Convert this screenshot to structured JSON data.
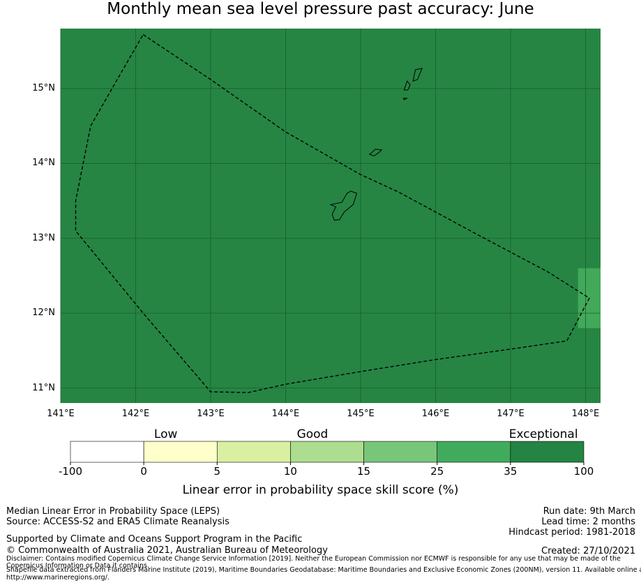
{
  "title": "Monthly mean sea level pressure past accuracy: June",
  "map": {
    "x_ticks": [
      "141°E",
      "142°E",
      "143°E",
      "144°E",
      "145°E",
      "146°E",
      "147°E",
      "148°E"
    ],
    "y_ticks": [
      "15°N",
      "14°N",
      "13°N",
      "12°N",
      "11°N"
    ],
    "x_range_deg": [
      141.0,
      148.2
    ],
    "y_range_deg": [
      10.8,
      15.8
    ],
    "background_category": "Exceptional",
    "background_color": "#268543",
    "highlight_cells": [
      {
        "lon_range": [
          147.9,
          148.2
        ],
        "lat_range": [
          11.8,
          12.6
        ],
        "color": "#42a85a"
      }
    ],
    "eez_boundary_style": "dashed",
    "eez_boundary_lonlat": [
      [
        142.1,
        15.72
      ],
      [
        143.0,
        15.12
      ],
      [
        144.0,
        14.42
      ],
      [
        145.0,
        13.85
      ],
      [
        145.5,
        13.62
      ],
      [
        146.5,
        13.08
      ],
      [
        147.5,
        12.55
      ],
      [
        148.05,
        12.2
      ],
      [
        147.75,
        11.63
      ],
      [
        147.0,
        11.52
      ],
      [
        146.0,
        11.38
      ],
      [
        145.0,
        11.22
      ],
      [
        144.0,
        11.05
      ],
      [
        143.5,
        10.94
      ],
      [
        143.0,
        10.95
      ],
      [
        142.1,
        12.0
      ],
      [
        141.2,
        13.1
      ],
      [
        141.2,
        13.5
      ],
      [
        141.4,
        14.5
      ],
      [
        141.8,
        15.2
      ],
      [
        142.1,
        15.72
      ]
    ],
    "islands": [
      {
        "name": "Guam",
        "lonlat": [
          [
            144.87,
            13.63
          ],
          [
            144.95,
            13.6
          ],
          [
            144.9,
            13.45
          ],
          [
            144.78,
            13.35
          ],
          [
            144.72,
            13.25
          ],
          [
            144.65,
            13.24
          ],
          [
            144.62,
            13.32
          ],
          [
            144.67,
            13.42
          ],
          [
            144.6,
            13.45
          ],
          [
            144.75,
            13.48
          ],
          [
            144.82,
            13.6
          ],
          [
            144.87,
            13.63
          ]
        ]
      },
      {
        "name": "Rota",
        "lonlat": [
          [
            145.12,
            14.12
          ],
          [
            145.2,
            14.19
          ],
          [
            145.28,
            14.18
          ],
          [
            145.25,
            14.15
          ],
          [
            145.18,
            14.1
          ],
          [
            145.12,
            14.12
          ]
        ]
      },
      {
        "name": "Tinian",
        "lonlat": [
          [
            145.57,
            14.87
          ],
          [
            145.62,
            14.87
          ],
          [
            145.58,
            14.85
          ],
          [
            145.57,
            14.87
          ]
        ]
      },
      {
        "name": "Aguijan",
        "lonlat": [
          [
            145.58,
            14.98
          ],
          [
            145.62,
            15.1
          ],
          [
            145.66,
            15.05
          ],
          [
            145.63,
            14.98
          ],
          [
            145.58,
            14.98
          ]
        ]
      },
      {
        "name": "Saipan",
        "lonlat": [
          [
            145.7,
            15.1
          ],
          [
            145.73,
            15.25
          ],
          [
            145.82,
            15.27
          ],
          [
            145.79,
            15.2
          ],
          [
            145.76,
            15.12
          ],
          [
            145.7,
            15.1
          ]
        ]
      }
    ]
  },
  "colorbar": {
    "category_labels": [
      "Low",
      "Good",
      "Exceptional"
    ],
    "bins": [
      {
        "from": "-100",
        "to": "0",
        "color": "#ffffff"
      },
      {
        "from": "0",
        "to": "5",
        "color": "#ffffcc"
      },
      {
        "from": "5",
        "to": "10",
        "color": "#d9f0a3"
      },
      {
        "from": "10",
        "to": "15",
        "color": "#addd8e"
      },
      {
        "from": "15",
        "to": "25",
        "color": "#78c679"
      },
      {
        "from": "25",
        "to": "35",
        "color": "#41ab5d"
      },
      {
        "from": "35",
        "to": "100",
        "color": "#238443"
      }
    ],
    "tick_labels": [
      "-100",
      "0",
      "5",
      "10",
      "15",
      "25",
      "35",
      "100"
    ],
    "axis_label": "Linear error in probability space skill score (%)"
  },
  "info_left": {
    "line1": "Median Linear Error in Probability Space (LEPS)",
    "line2": "Source: ACCESS-S2 and ERA5 Climate Reanalysis",
    "line3": "Supported by Climate and Oceans Support Program in the Pacific",
    "line4": "© Commonwealth of Australia 2021, Australian Bureau of Meteorology"
  },
  "info_right": {
    "run_date": "Run date: 9th March",
    "lead_time": "Lead time: 2 months",
    "hindcast": "Hindcast period: 1981-2018",
    "created": "Created: 27/10/2021"
  },
  "disclaimer": {
    "line1": "Disclaimer: Contains modified Copernicus Climate Change Service Information [2019]. Neither the European Commission nor ECMWF is responsible for any use that may be made of the",
    "line2": "Copernicus Information or Data it contains.",
    "line3": "Shapefile data extracted from Flanders Marine Institute (2019), Maritime Boundaries Geodatabase: Maritime Boundaries and Exclusive Economic Zones (200NM), version 11. Available online at",
    "line4": "http://www.marineregions.org/."
  }
}
